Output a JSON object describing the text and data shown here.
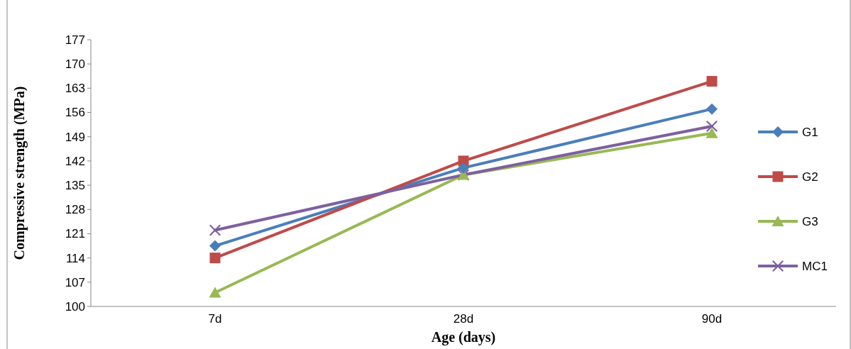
{
  "chart_data": {
    "type": "line",
    "xlabel": "Age (days)",
    "ylabel": "Compressive strength (MPa)",
    "categories": [
      "7d",
      "28d",
      "90d"
    ],
    "ylim": [
      100,
      177
    ],
    "yticks": [
      100,
      107,
      114,
      121,
      128,
      135,
      142,
      149,
      156,
      163,
      170,
      177
    ],
    "grid": false,
    "legend": "right",
    "line_style": "solid",
    "series": [
      {
        "name": "G1",
        "color": "#4a7ebb",
        "marker": "diamond",
        "values": [
          117.5,
          140,
          157
        ]
      },
      {
        "name": "G2",
        "color": "#be4b48",
        "marker": "square",
        "values": [
          114,
          142,
          165
        ]
      },
      {
        "name": "G3",
        "color": "#98b954",
        "marker": "triangle",
        "values": [
          104,
          138,
          150
        ]
      },
      {
        "name": "MC1",
        "color": "#7d60a0",
        "marker": "cross",
        "values": [
          122,
          138,
          152
        ]
      }
    ]
  }
}
